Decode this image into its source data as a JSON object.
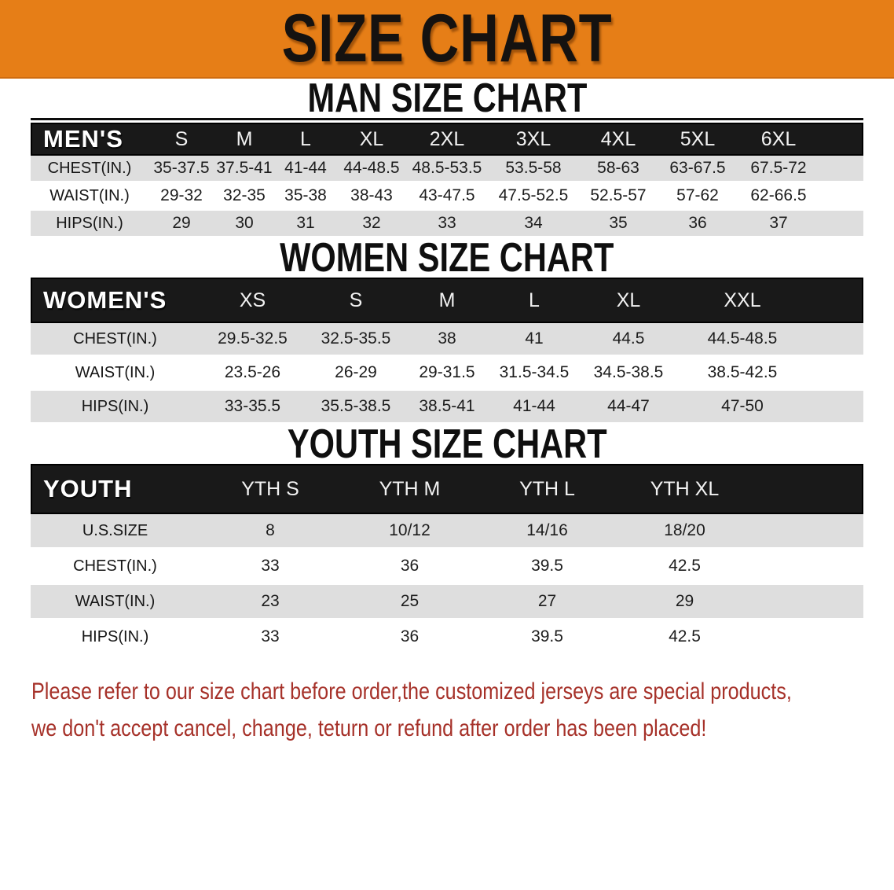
{
  "banner": {
    "title": "SIZE CHART"
  },
  "sections": [
    {
      "heading": "MAN SIZE CHART",
      "table": {
        "corner_label": "MEN'S",
        "columns": [
          "S",
          "M",
          "L",
          "XL",
          "2XL",
          "3XL",
          "4XL",
          "5XL",
          "6XL"
        ],
        "rows": [
          {
            "label": "CHEST(IN.)",
            "values": [
              "35-37.5",
              "37.5-41",
              "41-44",
              "44-48.5",
              "48.5-53.5",
              "53.5-58",
              "58-63",
              "63-67.5",
              "67.5-72"
            ]
          },
          {
            "label": "WAIST(IN.)",
            "values": [
              "29-32",
              "32-35",
              "35-38",
              "38-43",
              "43-47.5",
              "47.5-52.5",
              "52.5-57",
              "57-62",
              "62-66.5"
            ]
          },
          {
            "label": "HIPS(IN.)",
            "values": [
              "29",
              "30",
              "31",
              "32",
              "33",
              "34",
              "35",
              "36",
              "37"
            ]
          }
        ]
      }
    },
    {
      "heading": "WOMEN SIZE CHART",
      "table": {
        "corner_label": "WOMEN'S",
        "columns": [
          "XS",
          "S",
          "M",
          "L",
          "XL",
          "XXL"
        ],
        "rows": [
          {
            "label": "CHEST(IN.)",
            "values": [
              "29.5-32.5",
              "32.5-35.5",
              "38",
              "41",
              "44.5",
              "44.5-48.5"
            ]
          },
          {
            "label": "WAIST(IN.)",
            "values": [
              "23.5-26",
              "26-29",
              "29-31.5",
              "31.5-34.5",
              "34.5-38.5",
              "38.5-42.5"
            ]
          },
          {
            "label": "HIPS(IN.)",
            "values": [
              "33-35.5",
              "35.5-38.5",
              "38.5-41",
              "41-44",
              "44-47",
              "47-50"
            ]
          }
        ]
      }
    },
    {
      "heading": "YOUTH SIZE CHART",
      "table": {
        "corner_label": "YOUTH",
        "columns": [
          "YTH S",
          "YTH M",
          "YTH L",
          "YTH XL"
        ],
        "rows": [
          {
            "label": "U.S.SIZE",
            "values": [
              "8",
              "10/12",
              "14/16",
              "18/20"
            ]
          },
          {
            "label": "CHEST(IN.)",
            "values": [
              "33",
              "36",
              "39.5",
              "42.5"
            ]
          },
          {
            "label": "WAIST(IN.)",
            "values": [
              "23",
              "25",
              "27",
              "29"
            ]
          },
          {
            "label": "HIPS(IN.)",
            "values": [
              "33",
              "36",
              "39.5",
              "42.5"
            ]
          }
        ]
      }
    }
  ],
  "disclaimer": {
    "lines": [
      "Please refer to our size chart before order,the customized jerseys are special products,",
      "we don't accept cancel, change, teturn or refund after order has been placed!"
    ]
  },
  "colors": {
    "banner_orange": "#e67e17",
    "band_black": "#191919",
    "row_gray": "#dedede",
    "row_white": "#ffffff",
    "disclaimer_red": "#a63129"
  }
}
